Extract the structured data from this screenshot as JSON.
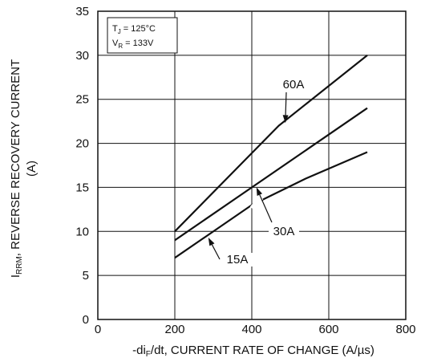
{
  "chart_data": {
    "type": "line",
    "xlabel": "-di",
    "xlabel_sub": "F",
    "xlabel_rest": "/dt, CURRENT RATE OF CHANGE (A/µs)",
    "ylabel": "I",
    "ylabel_sub": "RRM",
    "ylabel_rest": ", REVERSE RECOVERY CURRENT",
    "ylabel_line2": "(A)",
    "xlim": [
      0,
      800
    ],
    "ylim": [
      0,
      35
    ],
    "x_ticks": [
      0,
      200,
      400,
      600,
      800
    ],
    "y_ticks": [
      0,
      5,
      10,
      15,
      20,
      25,
      30,
      35
    ],
    "grid": true,
    "conditions": {
      "line1_main": "T",
      "line1_sub": "J",
      "line1_rest": " = 125°C",
      "line2_main": "V",
      "line2_sub": "R",
      "line2_rest": " = 133V"
    },
    "series": [
      {
        "name": "60A",
        "x": [
          200,
          470,
          700
        ],
        "y": [
          10,
          22,
          30
        ]
      },
      {
        "name": "30A",
        "x": [
          200,
          700
        ],
        "y": [
          9,
          24
        ]
      },
      {
        "name": "15A",
        "x": [
          200,
          400,
          540,
          700
        ],
        "y": [
          7,
          13,
          16,
          19
        ]
      }
    ]
  }
}
